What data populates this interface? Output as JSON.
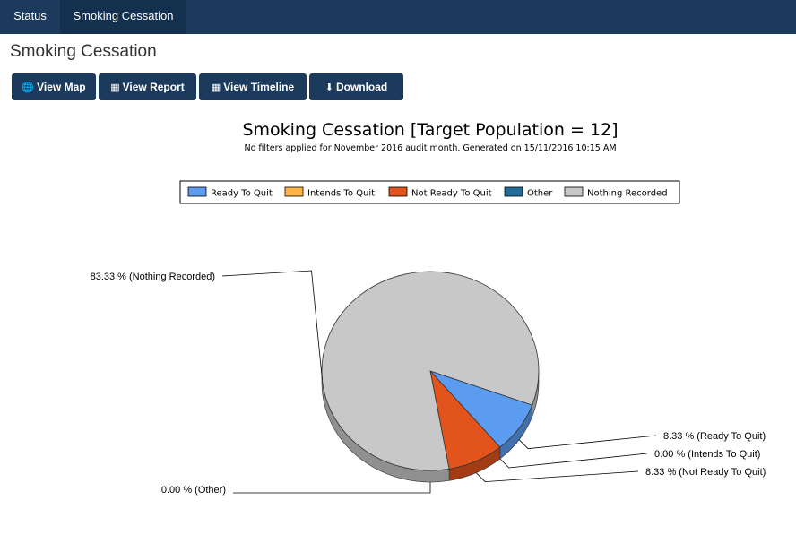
{
  "nav": {
    "tabs": [
      {
        "label": "Status"
      },
      {
        "label": "Smoking Cessation"
      }
    ]
  },
  "page": {
    "title": "Smoking Cessation"
  },
  "toolbar": {
    "buttons": [
      {
        "label": "View Map",
        "icon": "globe-icon"
      },
      {
        "label": "View Report",
        "icon": "table-icon"
      },
      {
        "label": "View Timeline",
        "icon": "table-icon"
      },
      {
        "label": "Download",
        "icon": "download-icon"
      }
    ]
  },
  "chart_data": {
    "type": "pie",
    "title": "Smoking Cessation [Target Population = 12]",
    "subtitle": "No filters applied for November 2016 audit month. Generated on 15/11/2016 10:15 AM",
    "legend_position": "top-center",
    "slices": [
      {
        "name": "Ready To Quit",
        "value": 8.33,
        "label": "8.33 % (Ready To Quit)",
        "color": "#5b9bf0"
      },
      {
        "name": "Intends To Quit",
        "value": 0.0,
        "label": "0.00 % (Intends To Quit)",
        "color": "#ffb347"
      },
      {
        "name": "Not Ready To Quit",
        "value": 8.33,
        "label": "8.33 % (Not Ready To Quit)",
        "color": "#e2541c"
      },
      {
        "name": "Other",
        "value": 0.0,
        "label": "0.00 % (Other)",
        "color": "#1f6d99"
      },
      {
        "name": "Nothing Recorded",
        "value": 83.33,
        "label": "83.33 % (Nothing Recorded)",
        "color": "#c8c8c8"
      }
    ]
  }
}
